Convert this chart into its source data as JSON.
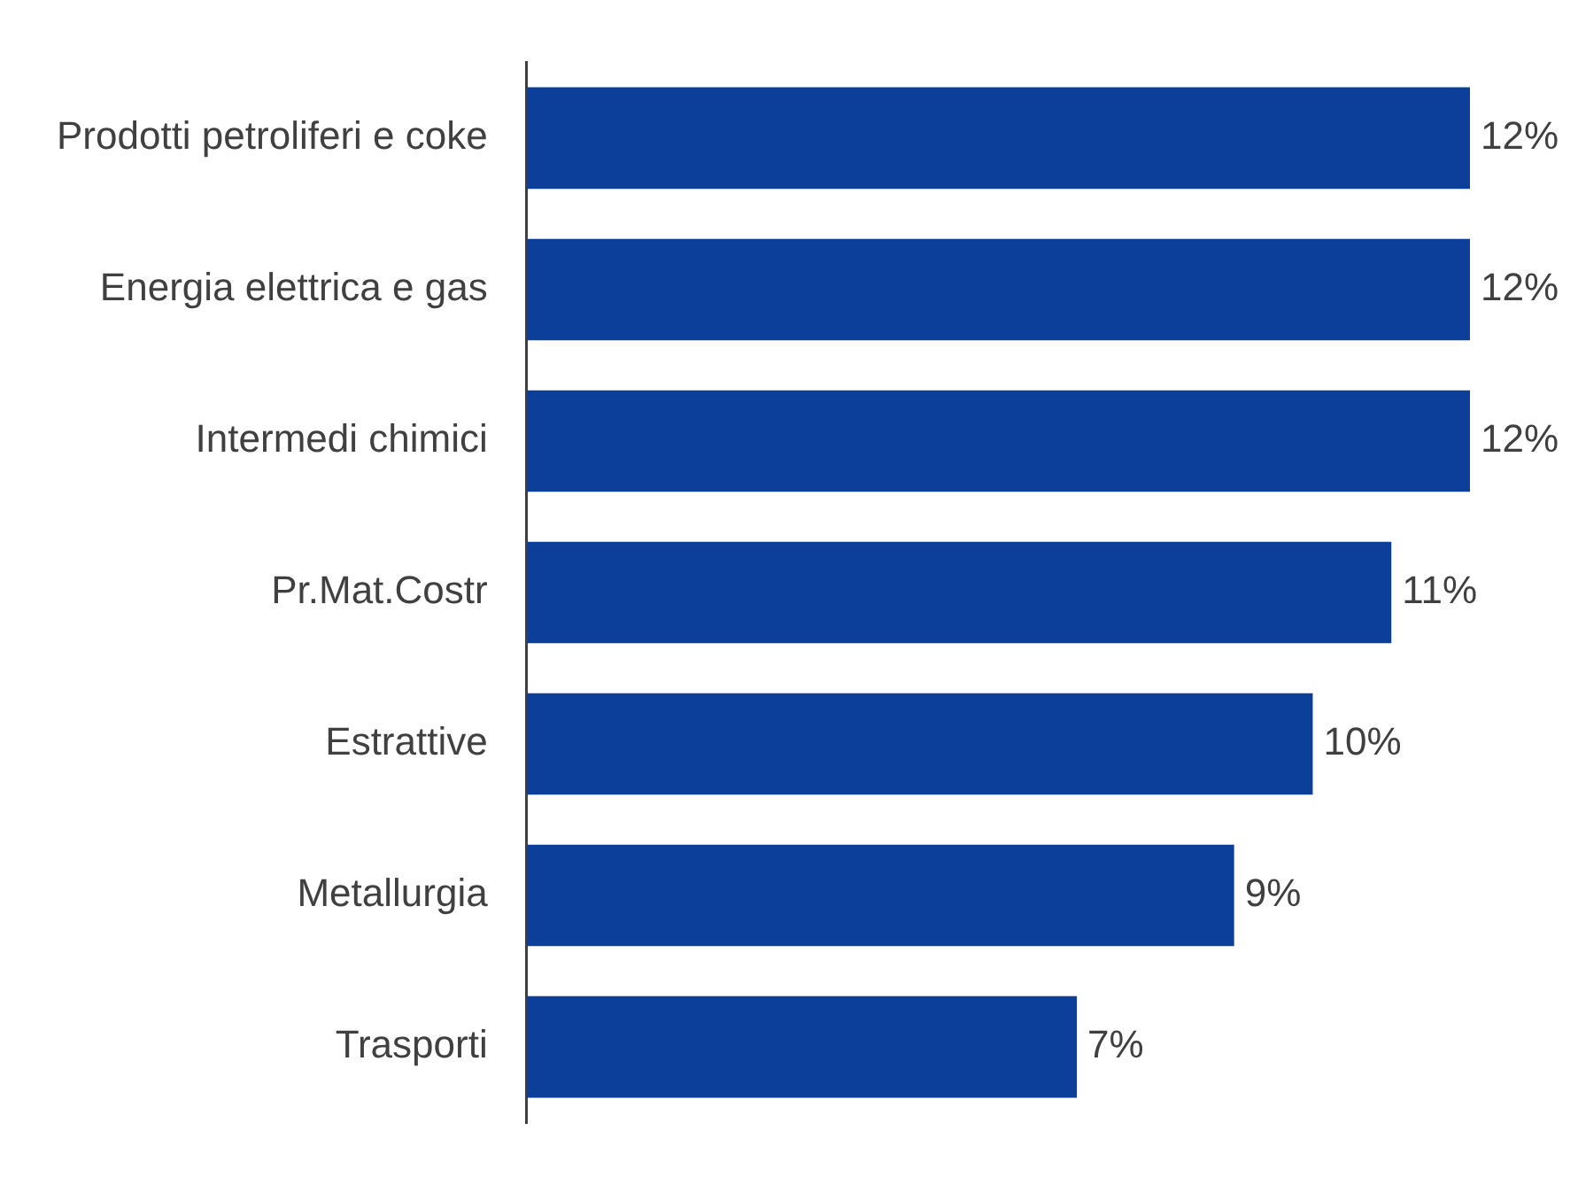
{
  "chart_data": {
    "type": "bar",
    "orientation": "horizontal",
    "categories": [
      "Prodotti petroliferi e coke",
      "Energia elettrica e gas",
      "Intermedi chimici",
      "Pr.Mat.Costr",
      "Estrattive",
      "Metallurgia",
      "Trasporti"
    ],
    "values": [
      12,
      12,
      12,
      11,
      10,
      9,
      7
    ],
    "value_labels": [
      "12%",
      "12%",
      "12%",
      "11%",
      "10%",
      "9%",
      "7%"
    ],
    "color": "#0b3f9a",
    "xlim": [
      0,
      12
    ],
    "grid": false,
    "legend": false,
    "tick_labels": "y"
  }
}
